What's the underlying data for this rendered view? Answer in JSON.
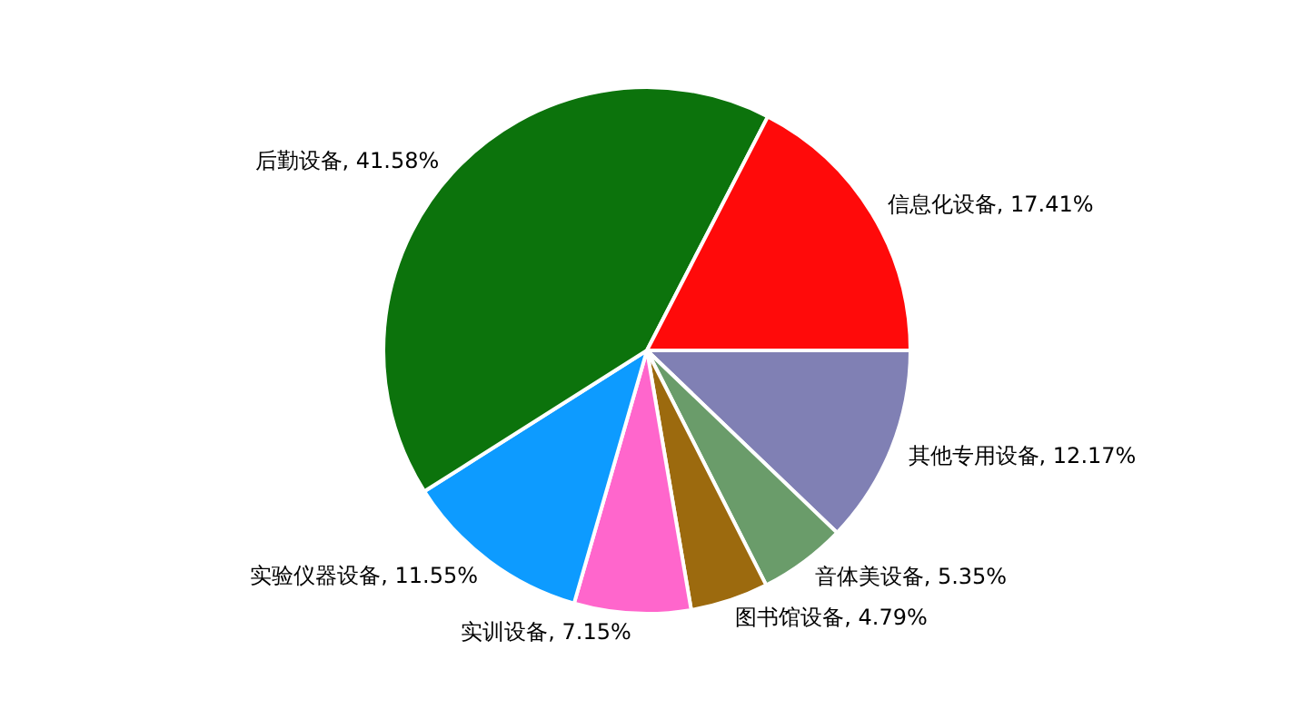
{
  "chart_data": {
    "type": "pie",
    "categories": [
      "其他专用设备",
      "音体美设备",
      "图书馆设备",
      "实训设备",
      "实验仪器设备",
      "后勤设备",
      "信息化设备"
    ],
    "values": [
      12.17,
      5.35,
      4.79,
      7.15,
      11.55,
      41.58,
      17.41
    ],
    "colors": [
      "#8080b4",
      "#6a9c6a",
      "#9c6a0e",
      "#ff66cc",
      "#0d9bff",
      "#0c730c",
      "#ff0a0a"
    ],
    "value_labels": [
      "12.17%",
      "5.35%",
      "4.79%",
      "7.15%",
      "11.55%",
      "41.58%",
      "17.41%"
    ],
    "legend": false
  }
}
